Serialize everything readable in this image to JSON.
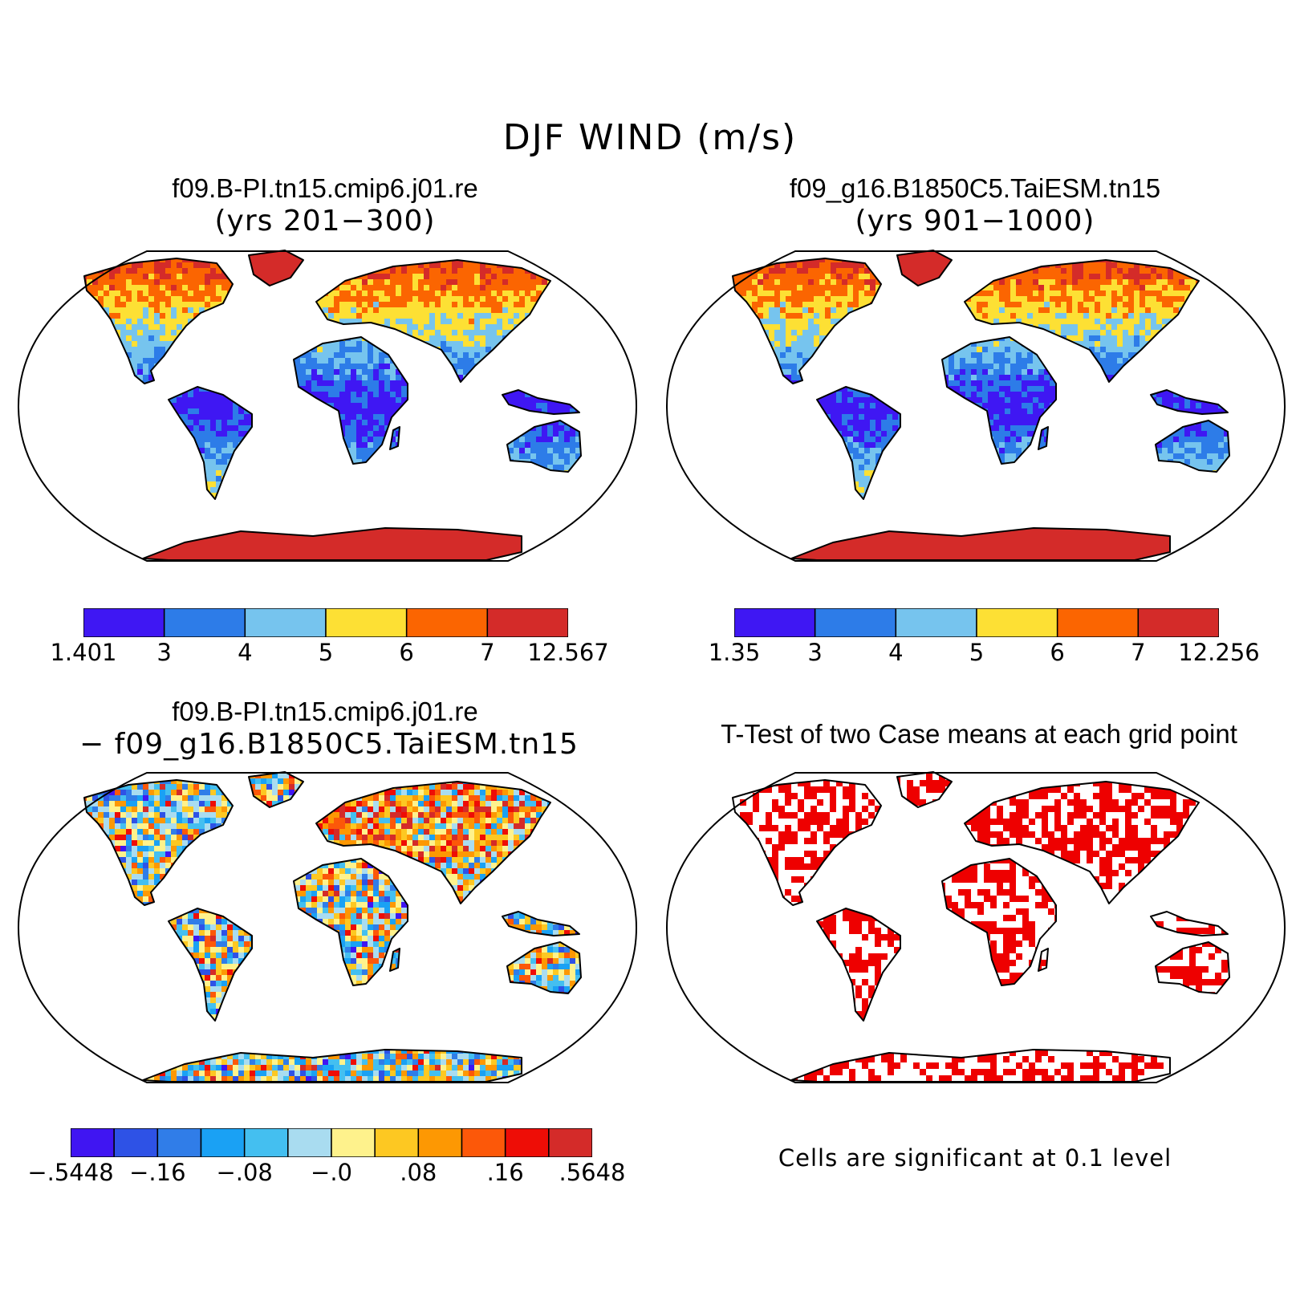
{
  "title": "DJF WIND (m/s)",
  "colors": {
    "wind_levels": [
      "#3f17f3",
      "#2d7ce8",
      "#76c4ee",
      "#fde034",
      "#fb6501",
      "#d42b29"
    ],
    "diff_levels": [
      "#4015f2",
      "#2e52e6",
      "#307de8",
      "#1aa1f4",
      "#44bff0",
      "#a9dcf0",
      "#fef28c",
      "#fdc822",
      "#fd9803",
      "#fc5809",
      "#ee0d06",
      "#d42b29"
    ],
    "significance": "#ee0000",
    "land_outline": "#000000"
  },
  "panels": [
    {
      "title": "f09.B-PI.tn15.cmip6.j01.re",
      "subtitle": "(yrs 201−300)",
      "colorbar_labels": [
        "1.401",
        "3",
        "4",
        "5",
        "6",
        "7",
        "12.567"
      ]
    },
    {
      "title": "f09_g16.B1850C5.TaiESM.tn15",
      "subtitle": "(yrs 901−1000)",
      "colorbar_labels": [
        "1.35",
        "3",
        "4",
        "5",
        "6",
        "7",
        "12.256"
      ]
    },
    {
      "title": "f09.B-PI.tn15.cmip6.j01.re",
      "subtitle": "− f09_g16.B1850C5.TaiESM.tn15",
      "colorbar_labels": [
        "−.5448",
        "−.16",
        "−.08",
        "−.0",
        ".08",
        ".16",
        ".5648"
      ]
    },
    {
      "title": "T-Test of two Case means at each grid point",
      "note": "Cells are significant at 0.1 level"
    }
  ]
}
